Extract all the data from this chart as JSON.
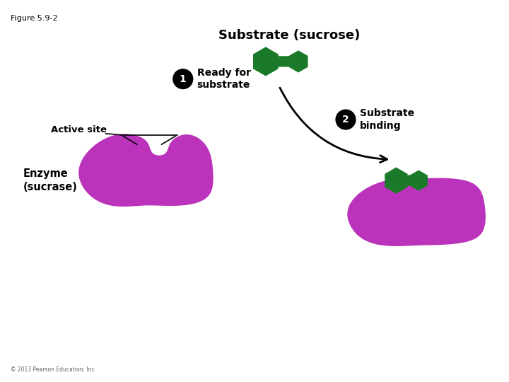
{
  "figure_label": "Figure 5.9-2",
  "title": "Substrate (sucrose)",
  "enzyme_color": "#BB33BB",
  "substrate_color": "#1A7A2A",
  "step1_label": "Ready for\nsubstrate",
  "step2_label": "Substrate\nbinding",
  "active_site_label": "Active site",
  "enzyme_label": "Enzyme\n(sucrase)",
  "copyright": "© 2013 Pearson Education, Inc.",
  "background": "#ffffff",
  "text_color": "#000000"
}
